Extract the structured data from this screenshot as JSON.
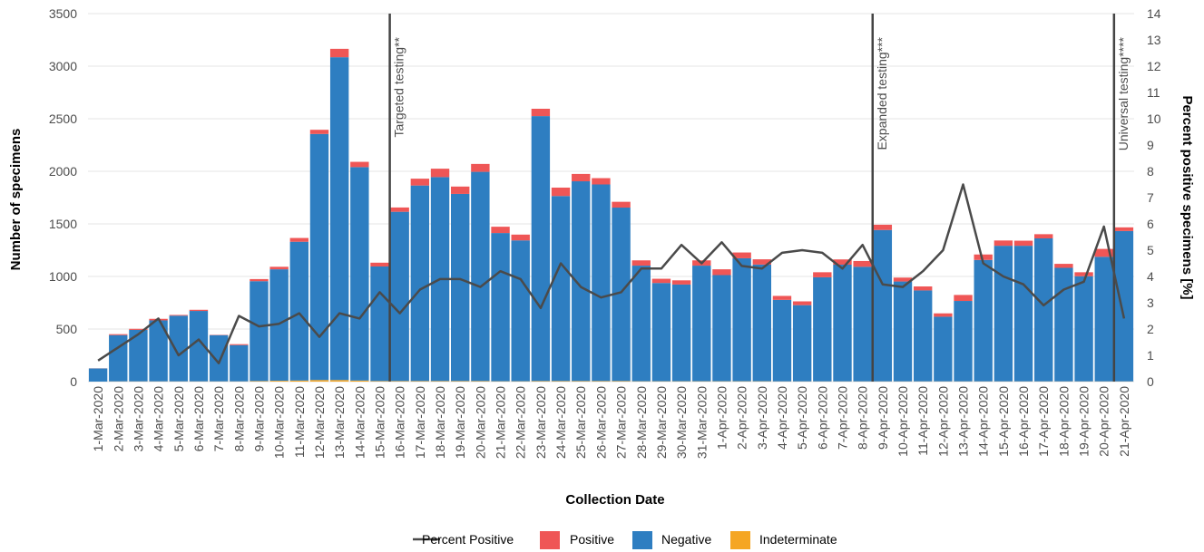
{
  "chart_data": {
    "type": "bar",
    "stacked": true,
    "xlabel": "Collection Date",
    "ylabel": "Number of specimens",
    "y2label": "Percent positive specimens [%]",
    "ylim": [
      0,
      3500
    ],
    "y2lim": [
      0,
      14
    ],
    "yticks": [
      0,
      500,
      1000,
      1500,
      2000,
      2500,
      3000,
      3500
    ],
    "y2ticks": [
      0,
      1,
      2,
      3,
      4,
      5,
      6,
      7,
      8,
      9,
      10,
      11,
      12,
      13,
      14
    ],
    "grid": true,
    "legend_position": "bottom",
    "categories": [
      "1-Mar-2020",
      "2-Mar-2020",
      "3-Mar-2020",
      "4-Mar-2020",
      "5-Mar-2020",
      "6-Mar-2020",
      "7-Mar-2020",
      "8-Mar-2020",
      "9-Mar-2020",
      "10-Mar-2020",
      "11-Mar-2020",
      "12-Mar-2020",
      "13-Mar-2020",
      "14-Mar-2020",
      "15-Mar-2020",
      "16-Mar-2020",
      "17-Mar-2020",
      "18-Mar-2020",
      "19-Mar-2020",
      "20-Mar-2020",
      "21-Mar-2020",
      "22-Mar-2020",
      "23-Mar-2020",
      "24-Mar-2020",
      "25-Mar-2020",
      "26-Mar-2020",
      "27-Mar-2020",
      "28-Mar-2020",
      "29-Mar-2020",
      "30-Mar-2020",
      "31-Mar-2020",
      "1-Apr-2020",
      "2-Apr-2020",
      "3-Apr-2020",
      "4-Apr-2020",
      "5-Apr-2020",
      "6-Apr-2020",
      "7-Apr-2020",
      "8-Apr-2020",
      "9-Apr-2020",
      "10-Apr-2020",
      "11-Apr-2020",
      "12-Apr-2020",
      "13-Apr-2020",
      "14-Apr-2020",
      "15-Apr-2020",
      "16-Apr-2020",
      "17-Apr-2020",
      "18-Apr-2020",
      "19-Apr-2020",
      "20-Apr-2020",
      "21-Apr-2020"
    ],
    "series": [
      {
        "name": "Indeterminate",
        "color": "#f5a623",
        "values": [
          0,
          2,
          2,
          2,
          2,
          2,
          2,
          2,
          5,
          8,
          10,
          15,
          15,
          10,
          5,
          5,
          5,
          5,
          5,
          5,
          3,
          3,
          5,
          5,
          5,
          5,
          5,
          3,
          3,
          3,
          3,
          3,
          3,
          3,
          2,
          2,
          2,
          2,
          2,
          2,
          2,
          2,
          2,
          2,
          2,
          2,
          2,
          2,
          2,
          2,
          2,
          2
        ]
      },
      {
        "name": "Negative",
        "color": "#2e7ec1",
        "values": [
          125,
          440,
          490,
          580,
          625,
          670,
          440,
          345,
          950,
          1060,
          1320,
          2340,
          3070,
          2030,
          1090,
          1610,
          1860,
          1940,
          1780,
          1990,
          1410,
          1340,
          2520,
          1760,
          1900,
          1870,
          1650,
          1100,
          935,
          920,
          1100,
          1010,
          1170,
          1110,
          775,
          725,
          990,
          1110,
          1090,
          1440,
          950,
          865,
          615,
          765,
          1155,
          1290,
          1290,
          1360,
          1080,
          1000,
          1185,
          1430
        ]
      },
      {
        "name": "Positive",
        "color": "#ef5656",
        "values": [
          1,
          9,
          10,
          15,
          7,
          11,
          3,
          9,
          20,
          24,
          36,
          40,
          80,
          50,
          36,
          41,
          65,
          80,
          70,
          75,
          60,
          55,
          70,
          80,
          70,
          60,
          55,
          50,
          40,
          40,
          50,
          55,
          55,
          50,
          38,
          36,
          48,
          50,
          55,
          50,
          37,
          38,
          32,
          57,
          52,
          50,
          48,
          40,
          38,
          38,
          75,
          35
        ]
      },
      {
        "name": "Percent Positive",
        "type": "line",
        "axis": "y2",
        "color": "#4a4a4a",
        "values": [
          0.8,
          1.3,
          1.8,
          2.4,
          1.0,
          1.6,
          0.7,
          2.5,
          2.1,
          2.2,
          2.6,
          1.7,
          2.6,
          2.4,
          3.4,
          2.6,
          3.5,
          3.9,
          3.9,
          3.6,
          4.2,
          3.9,
          2.8,
          4.5,
          3.6,
          3.2,
          3.4,
          4.3,
          4.3,
          5.2,
          4.5,
          5.3,
          4.4,
          4.3,
          4.9,
          5.0,
          4.9,
          4.3,
          5.2,
          3.7,
          3.6,
          4.2,
          5.0,
          7.5,
          4.5,
          4.0,
          3.7,
          2.9,
          3.5,
          3.8,
          5.9,
          2.4
        ]
      }
    ],
    "events": [
      {
        "category": "16-Mar-2020",
        "label": "Targeted testing**"
      },
      {
        "category": "9-Apr-2020",
        "label": "Expanded testing***"
      },
      {
        "category": "21-Apr-2020",
        "label": "Universal testing****"
      }
    ]
  },
  "legend": [
    {
      "label": "Percent Positive",
      "kind": "line",
      "color": "#4a4a4a"
    },
    {
      "label": "Positive",
      "kind": "box",
      "color": "#ef5656"
    },
    {
      "label": "Negative",
      "kind": "box",
      "color": "#2e7ec1"
    },
    {
      "label": "Indeterminate",
      "kind": "box",
      "color": "#f5a623"
    }
  ]
}
